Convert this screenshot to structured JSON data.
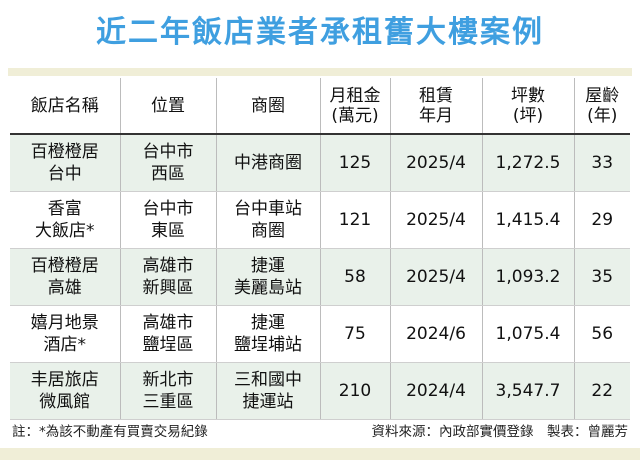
{
  "title": "近二年飯店業者承租舊大樓案例",
  "headers": [
    [
      "飯店名稱"
    ],
    [
      "位置"
    ],
    [
      "商圈"
    ],
    [
      "月租金",
      "(萬元)"
    ],
    [
      "租賃",
      "年月"
    ],
    [
      "坪數",
      "(坪)"
    ],
    [
      "屋齡",
      "(年)"
    ]
  ],
  "rows": [
    {
      "name": [
        "百橙橙居",
        "台中"
      ],
      "location": [
        "台中市",
        "西區"
      ],
      "district": [
        "中港商圈"
      ],
      "rent": "125",
      "date": "2025/4",
      "area": "1,272.5",
      "age": "33"
    },
    {
      "name": [
        "香富",
        "大飯店*"
      ],
      "location": [
        "台中市",
        "東區"
      ],
      "district": [
        "台中車站",
        "商圈"
      ],
      "rent": "121",
      "date": "2025/4",
      "area": "1,415.4",
      "age": "29"
    },
    {
      "name": [
        "百橙橙居",
        "高雄"
      ],
      "location": [
        "高雄市",
        "新興區"
      ],
      "district": [
        "捷運",
        "美麗島站"
      ],
      "rent": "58",
      "date": "2025/4",
      "area": "1,093.2",
      "age": "35"
    },
    {
      "name": [
        "嬉月地景",
        "酒店*"
      ],
      "location": [
        "高雄市",
        "鹽埕區"
      ],
      "district": [
        "捷運",
        "鹽埕埔站"
      ],
      "rent": "75",
      "date": "2024/6",
      "area": "1,075.4",
      "age": "56"
    },
    {
      "name": [
        "丰居旅店",
        "微風館"
      ],
      "location": [
        "新北市",
        "三重區"
      ],
      "district": [
        "三和國中",
        "捷運站"
      ],
      "rent": "210",
      "date": "2024/4",
      "area": "3,547.7",
      "age": "22"
    }
  ],
  "footer": {
    "note": "註：*為該不動產有買賣交易紀錄",
    "source": "資料來源：內政部實價登錄　製表：曾麗芳"
  }
}
